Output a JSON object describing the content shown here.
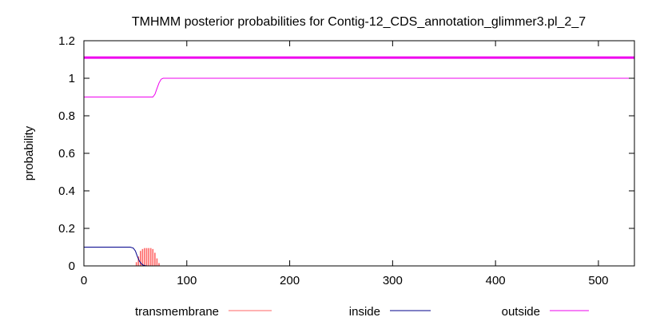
{
  "chart_data": {
    "type": "line",
    "title": "TMHMM posterior probabilities for Contig-12_CDS_annotation_glimmer3.pl_2_7",
    "xlabel": "",
    "ylabel": "probability",
    "xlim": [
      0,
      535
    ],
    "ylim": [
      0,
      1.2
    ],
    "x_ticks": [
      0,
      100,
      200,
      300,
      400,
      500
    ],
    "y_ticks": [
      0,
      0.2,
      0.4,
      0.6,
      0.8,
      1,
      1.2
    ],
    "y_tick_labels": [
      "0",
      "0.2",
      "0.4",
      "0.6",
      "0.8",
      "1",
      "1.2"
    ],
    "grid": false,
    "legend_position": "bottom",
    "band": {
      "value": 1.11,
      "color": "#ee00ee"
    },
    "series": [
      {
        "name": "transmembrane",
        "color": "#ff6666",
        "style": "impulses",
        "x": [
          51,
          53,
          55,
          57,
          59,
          61,
          63,
          65,
          67,
          69,
          71,
          73
        ],
        "y": [
          0.02,
          0.05,
          0.08,
          0.09,
          0.095,
          0.095,
          0.095,
          0.095,
          0.09,
          0.07,
          0.04,
          0.015
        ]
      },
      {
        "name": "inside",
        "color": "#00008b",
        "style": "line",
        "x": [
          0,
          45,
          48,
          50,
          52,
          54,
          56,
          58,
          60,
          62,
          535
        ],
        "y": [
          0.1,
          0.1,
          0.095,
          0.08,
          0.05,
          0.025,
          0.01,
          0.003,
          0.001,
          0,
          0
        ]
      },
      {
        "name": "outside",
        "color": "#ee00ee",
        "style": "line",
        "x": [
          0,
          67,
          69,
          71,
          73,
          75,
          77,
          535
        ],
        "y": [
          0.9,
          0.9,
          0.915,
          0.945,
          0.975,
          0.995,
          1.0,
          1.0
        ]
      }
    ]
  }
}
